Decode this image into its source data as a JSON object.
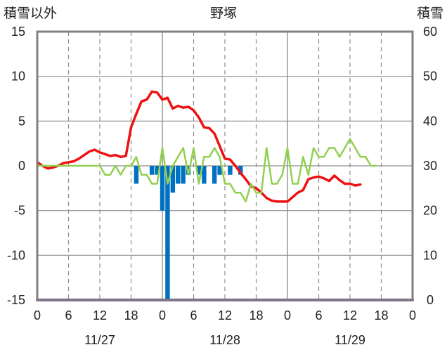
{
  "chart_data": {
    "type": "line",
    "title": "野塚",
    "left_axis_label": "積雪以外",
    "right_axis_label": "積雪",
    "left_ylim": [
      -15,
      15
    ],
    "left_yticks": [
      -15,
      -10,
      -5,
      0,
      5,
      10,
      15
    ],
    "right_ylim": [
      0,
      60
    ],
    "right_yticks": [
      0,
      10,
      20,
      30,
      40,
      50,
      60
    ],
    "xlim_hours": [
      0,
      72
    ],
    "x_tick_labels": [
      "0",
      "6",
      "12",
      "18",
      "0",
      "6",
      "12",
      "18",
      "0",
      "6",
      "12",
      "18",
      "0"
    ],
    "date_labels": [
      "11/27",
      "11/28",
      "11/29"
    ],
    "grid": true,
    "colors": {
      "temperature": "#ee1111",
      "green_line": "#92d050",
      "bars": "#0070c0",
      "snow_depth": "#7030a0",
      "frame": "#808080"
    },
    "series": [
      {
        "kind": "line",
        "axis": "left",
        "color": "#ee1111",
        "values": [
          [
            0,
            0.4
          ],
          [
            1,
            0.0
          ],
          [
            2,
            -0.3
          ],
          [
            3,
            -0.2
          ],
          [
            4,
            0.0
          ],
          [
            5,
            0.3
          ],
          [
            6,
            0.4
          ],
          [
            7,
            0.5
          ],
          [
            8,
            0.8
          ],
          [
            9,
            1.2
          ],
          [
            10,
            1.6
          ],
          [
            11,
            1.8
          ],
          [
            12,
            1.5
          ],
          [
            13,
            1.3
          ],
          [
            14,
            1.1
          ],
          [
            15,
            1.2
          ],
          [
            16,
            1.0
          ],
          [
            17,
            1.1
          ],
          [
            18,
            4.3
          ],
          [
            19,
            5.8
          ],
          [
            20,
            7.2
          ],
          [
            21,
            7.4
          ],
          [
            22,
            8.3
          ],
          [
            23,
            8.2
          ],
          [
            24,
            7.4
          ],
          [
            25,
            7.6
          ],
          [
            26,
            6.4
          ],
          [
            27,
            6.7
          ],
          [
            28,
            6.5
          ],
          [
            29,
            6.6
          ],
          [
            30,
            6.2
          ],
          [
            31,
            5.4
          ],
          [
            32,
            4.3
          ],
          [
            33,
            4.2
          ],
          [
            34,
            3.6
          ],
          [
            35,
            2.2
          ],
          [
            36,
            0.8
          ],
          [
            37,
            0.7
          ],
          [
            38,
            0.0
          ],
          [
            39,
            -0.8
          ],
          [
            40,
            -1.5
          ],
          [
            41,
            -2.3
          ],
          [
            42,
            -2.5
          ],
          [
            43,
            -3.0
          ],
          [
            44,
            -3.6
          ],
          [
            45,
            -3.9
          ],
          [
            46,
            -4.0
          ],
          [
            47,
            -4.0
          ],
          [
            48,
            -4.0
          ],
          [
            49,
            -3.5
          ],
          [
            50,
            -3.0
          ],
          [
            51,
            -2.7
          ],
          [
            52,
            -1.5
          ],
          [
            53,
            -1.3
          ],
          [
            54,
            -1.2
          ],
          [
            55,
            -1.4
          ],
          [
            56,
            -1.7
          ],
          [
            57,
            -1.1
          ],
          [
            58,
            -1.6
          ],
          [
            59,
            -2.0
          ],
          [
            60,
            -2.0
          ],
          [
            61,
            -2.2
          ],
          [
            62,
            -2.1
          ]
        ]
      },
      {
        "kind": "line",
        "axis": "left",
        "color": "#92d050",
        "values": [
          [
            0,
            0
          ],
          [
            6,
            0
          ],
          [
            12,
            0
          ],
          [
            13,
            -1
          ],
          [
            14,
            -1
          ],
          [
            15,
            0
          ],
          [
            16,
            -1
          ],
          [
            17,
            0
          ],
          [
            18,
            0
          ],
          [
            19,
            1
          ],
          [
            20,
            -1
          ],
          [
            21,
            -1
          ],
          [
            22,
            -2
          ],
          [
            23,
            -2
          ],
          [
            24,
            2
          ],
          [
            25,
            -2
          ],
          [
            26,
            0
          ],
          [
            27,
            1
          ],
          [
            28,
            2
          ],
          [
            29,
            -1
          ],
          [
            30,
            2
          ],
          [
            31,
            -2
          ],
          [
            32,
            1
          ],
          [
            33,
            1
          ],
          [
            34,
            2
          ],
          [
            35,
            1
          ],
          [
            36,
            -2
          ],
          [
            37,
            -2
          ],
          [
            38,
            -3
          ],
          [
            39,
            -3
          ],
          [
            40,
            -4
          ],
          [
            41,
            -2
          ],
          [
            42,
            -3
          ],
          [
            43,
            -3
          ],
          [
            44,
            2
          ],
          [
            45,
            -2
          ],
          [
            46,
            -2
          ],
          [
            47,
            -1
          ],
          [
            48,
            2
          ],
          [
            49,
            -2
          ],
          [
            50,
            -2
          ],
          [
            51,
            1
          ],
          [
            52,
            -1
          ],
          [
            53,
            2
          ],
          [
            54,
            1
          ],
          [
            55,
            1
          ],
          [
            56,
            2
          ],
          [
            57,
            2
          ],
          [
            58,
            1
          ],
          [
            59,
            2
          ],
          [
            60,
            3
          ],
          [
            61,
            2
          ],
          [
            62,
            1
          ],
          [
            63,
            1
          ],
          [
            64,
            0
          ],
          [
            65,
            0
          ]
        ]
      },
      {
        "kind": "bar",
        "axis": "left",
        "color": "#0070c0",
        "values": [
          [
            19,
            -2
          ],
          [
            22,
            -1
          ],
          [
            23,
            -1
          ],
          [
            24,
            -5
          ],
          [
            25,
            -15
          ],
          [
            26,
            -3
          ],
          [
            27,
            -2
          ],
          [
            28,
            -2
          ],
          [
            29,
            -1
          ],
          [
            31,
            -1
          ],
          [
            32,
            -2
          ],
          [
            34,
            -2
          ],
          [
            35,
            -1
          ],
          [
            37,
            -1
          ],
          [
            39,
            -1
          ]
        ]
      },
      {
        "kind": "line",
        "axis": "right",
        "color": "#7030a0",
        "values": [
          [
            0,
            0
          ],
          [
            72,
            0
          ]
        ]
      }
    ]
  }
}
